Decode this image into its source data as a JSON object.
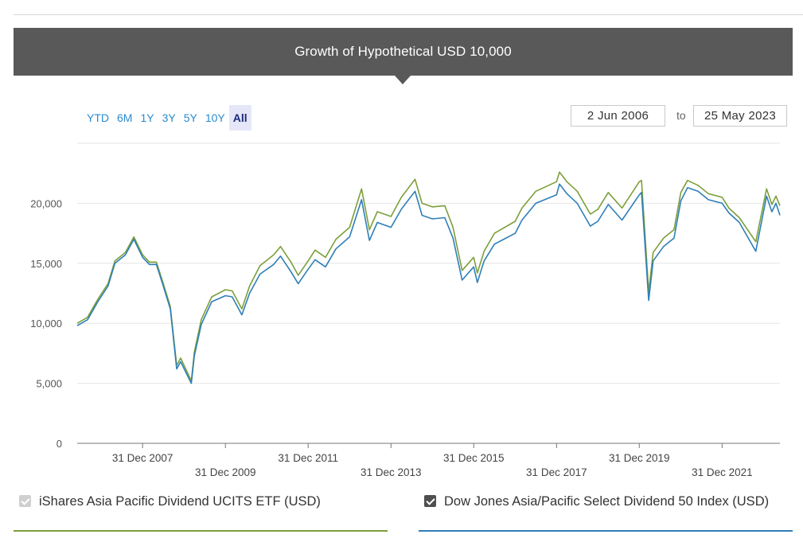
{
  "banner": {
    "title": "Growth of Hypothetical USD 10,000"
  },
  "range_buttons": [
    "YTD",
    "6M",
    "1Y",
    "3Y",
    "5Y",
    "10Y",
    "All"
  ],
  "range_selected": "All",
  "date_range": {
    "from": "2 Jun 2006",
    "separator": "to",
    "to": "25 May 2023"
  },
  "legend": [
    {
      "label": "iShares Asia Pacific Dividend UCITS ETF (USD)",
      "checked": true,
      "checkbox_style": "muted",
      "color": "#7c9f3a"
    },
    {
      "label": "Dow Jones Asia/Pacific Select Dividend 50 Index (USD)",
      "checked": true,
      "checkbox_style": "dark",
      "color": "#2e7fb8"
    }
  ],
  "chart_data": {
    "type": "line",
    "title": "Growth of Hypothetical USD 10,000",
    "xlim": [
      "2006-06-02",
      "2023-05-25"
    ],
    "ylim": [
      0,
      25000
    ],
    "yticks": [
      0,
      5000,
      10000,
      15000,
      20000
    ],
    "ytick_labels": [
      "0",
      "5,000",
      "10,000",
      "15,000",
      "20,000"
    ],
    "xticks": [
      "2007-12-31",
      "2009-12-31",
      "2011-12-31",
      "2013-12-31",
      "2015-12-31",
      "2017-12-31",
      "2019-12-31",
      "2021-12-31"
    ],
    "xtick_labels": [
      "31 Dec 2007",
      "31 Dec 2009",
      "31 Dec 2011",
      "31 Dec 2013",
      "31 Dec 2015",
      "31 Dec 2017",
      "31 Dec 2019",
      "31 Dec 2021"
    ],
    "grid": true,
    "series": [
      {
        "name": "iShares Asia Pacific Dividend UCITS ETF (USD)",
        "color": "#7c9f3a",
        "points": [
          [
            "2006-06-02",
            10000
          ],
          [
            "2006-09-01",
            10500
          ],
          [
            "2006-12-01",
            12000
          ],
          [
            "2007-03-01",
            13300
          ],
          [
            "2007-05-01",
            15200
          ],
          [
            "2007-08-01",
            15900
          ],
          [
            "2007-10-15",
            17200
          ],
          [
            "2007-12-31",
            15700
          ],
          [
            "2008-03-01",
            15100
          ],
          [
            "2008-05-01",
            15100
          ],
          [
            "2008-07-01",
            13300
          ],
          [
            "2008-09-01",
            11400
          ],
          [
            "2008-10-27",
            6500
          ],
          [
            "2008-12-01",
            7100
          ],
          [
            "2009-03-05",
            5200
          ],
          [
            "2009-04-01",
            7600
          ],
          [
            "2009-06-01",
            10300
          ],
          [
            "2009-09-01",
            12200
          ],
          [
            "2009-12-31",
            12800
          ],
          [
            "2010-03-01",
            12700
          ],
          [
            "2010-05-25",
            11200
          ],
          [
            "2010-08-01",
            13100
          ],
          [
            "2010-11-01",
            14800
          ],
          [
            "2011-03-01",
            15700
          ],
          [
            "2011-05-01",
            16400
          ],
          [
            "2011-08-01",
            15100
          ],
          [
            "2011-10-04",
            14000
          ],
          [
            "2011-12-31",
            15200
          ],
          [
            "2012-03-01",
            16100
          ],
          [
            "2012-06-01",
            15500
          ],
          [
            "2012-09-01",
            17000
          ],
          [
            "2012-12-31",
            18000
          ],
          [
            "2013-04-15",
            21200
          ],
          [
            "2013-06-24",
            17800
          ],
          [
            "2013-09-01",
            19300
          ],
          [
            "2013-12-31",
            18900
          ],
          [
            "2014-04-01",
            20500
          ],
          [
            "2014-07-31",
            22000
          ],
          [
            "2014-10-01",
            20000
          ],
          [
            "2014-12-31",
            19700
          ],
          [
            "2015-04-20",
            19800
          ],
          [
            "2015-07-01",
            18000
          ],
          [
            "2015-09-20",
            14400
          ],
          [
            "2015-12-31",
            15500
          ],
          [
            "2016-02-01",
            14200
          ],
          [
            "2016-04-01",
            16000
          ],
          [
            "2016-07-01",
            17500
          ],
          [
            "2016-12-31",
            18500
          ],
          [
            "2017-03-01",
            19600
          ],
          [
            "2017-07-01",
            21000
          ],
          [
            "2017-12-31",
            21800
          ],
          [
            "2018-01-26",
            22600
          ],
          [
            "2018-04-01",
            21800
          ],
          [
            "2018-07-01",
            21000
          ],
          [
            "2018-10-25",
            19100
          ],
          [
            "2018-12-31",
            19500
          ],
          [
            "2019-04-01",
            20900
          ],
          [
            "2019-08-01",
            19600
          ],
          [
            "2019-12-31",
            21800
          ],
          [
            "2020-01-20",
            21900
          ],
          [
            "2020-03-23",
            12600
          ],
          [
            "2020-05-01",
            15900
          ],
          [
            "2020-08-01",
            17100
          ],
          [
            "2020-11-01",
            17800
          ],
          [
            "2021-01-01",
            20900
          ],
          [
            "2021-03-01",
            21900
          ],
          [
            "2021-06-01",
            21500
          ],
          [
            "2021-09-01",
            20800
          ],
          [
            "2021-12-31",
            20500
          ],
          [
            "2022-03-01",
            19600
          ],
          [
            "2022-06-01",
            18800
          ],
          [
            "2022-10-24",
            16800
          ],
          [
            "2023-01-27",
            21200
          ],
          [
            "2023-03-15",
            19900
          ],
          [
            "2023-04-20",
            20600
          ],
          [
            "2023-05-25",
            19800
          ]
        ]
      },
      {
        "name": "Dow Jones Asia/Pacific Select Dividend 50 Index (USD)",
        "color": "#2e7fb8",
        "points": [
          [
            "2006-06-02",
            9800
          ],
          [
            "2006-09-01",
            10300
          ],
          [
            "2006-12-01",
            11800
          ],
          [
            "2007-03-01",
            13100
          ],
          [
            "2007-05-01",
            15000
          ],
          [
            "2007-08-01",
            15700
          ],
          [
            "2007-10-15",
            17000
          ],
          [
            "2007-12-31",
            15500
          ],
          [
            "2008-03-01",
            14900
          ],
          [
            "2008-05-01",
            14900
          ],
          [
            "2008-07-01",
            13100
          ],
          [
            "2008-09-01",
            11200
          ],
          [
            "2008-10-27",
            6200
          ],
          [
            "2008-12-01",
            6800
          ],
          [
            "2009-03-05",
            5000
          ],
          [
            "2009-04-01",
            7300
          ],
          [
            "2009-06-01",
            9900
          ],
          [
            "2009-09-01",
            11800
          ],
          [
            "2009-12-31",
            12300
          ],
          [
            "2010-03-01",
            12200
          ],
          [
            "2010-05-25",
            10700
          ],
          [
            "2010-08-01",
            12500
          ],
          [
            "2010-11-01",
            14100
          ],
          [
            "2011-03-01",
            14900
          ],
          [
            "2011-05-01",
            15600
          ],
          [
            "2011-08-01",
            14300
          ],
          [
            "2011-10-04",
            13300
          ],
          [
            "2011-12-31",
            14500
          ],
          [
            "2012-03-01",
            15300
          ],
          [
            "2012-06-01",
            14700
          ],
          [
            "2012-09-01",
            16200
          ],
          [
            "2012-12-31",
            17200
          ],
          [
            "2013-04-15",
            20300
          ],
          [
            "2013-06-24",
            16900
          ],
          [
            "2013-09-01",
            18400
          ],
          [
            "2013-12-31",
            18000
          ],
          [
            "2014-04-01",
            19500
          ],
          [
            "2014-07-31",
            21000
          ],
          [
            "2014-10-01",
            19000
          ],
          [
            "2014-12-31",
            18700
          ],
          [
            "2015-04-20",
            18800
          ],
          [
            "2015-07-01",
            17100
          ],
          [
            "2015-09-20",
            13600
          ],
          [
            "2015-12-31",
            14700
          ],
          [
            "2016-02-01",
            13400
          ],
          [
            "2016-04-01",
            15200
          ],
          [
            "2016-07-01",
            16600
          ],
          [
            "2016-12-31",
            17500
          ],
          [
            "2017-03-01",
            18600
          ],
          [
            "2017-07-01",
            20000
          ],
          [
            "2017-12-31",
            20700
          ],
          [
            "2018-01-26",
            21600
          ],
          [
            "2018-04-01",
            20800
          ],
          [
            "2018-07-01",
            20000
          ],
          [
            "2018-10-25",
            18100
          ],
          [
            "2018-12-31",
            18500
          ],
          [
            "2019-04-01",
            19900
          ],
          [
            "2019-08-01",
            18600
          ],
          [
            "2019-12-31",
            20700
          ],
          [
            "2020-01-20",
            20900
          ],
          [
            "2020-03-23",
            11900
          ],
          [
            "2020-05-01",
            15200
          ],
          [
            "2020-08-01",
            16400
          ],
          [
            "2020-11-01",
            17100
          ],
          [
            "2021-01-01",
            20200
          ],
          [
            "2021-03-01",
            21300
          ],
          [
            "2021-06-01",
            21000
          ],
          [
            "2021-09-01",
            20300
          ],
          [
            "2021-12-31",
            20000
          ],
          [
            "2022-03-01",
            19200
          ],
          [
            "2022-06-01",
            18400
          ],
          [
            "2022-10-24",
            16000
          ],
          [
            "2023-01-27",
            20600
          ],
          [
            "2023-03-15",
            19300
          ],
          [
            "2023-04-20",
            20000
          ],
          [
            "2023-05-25",
            19000
          ]
        ]
      }
    ]
  }
}
